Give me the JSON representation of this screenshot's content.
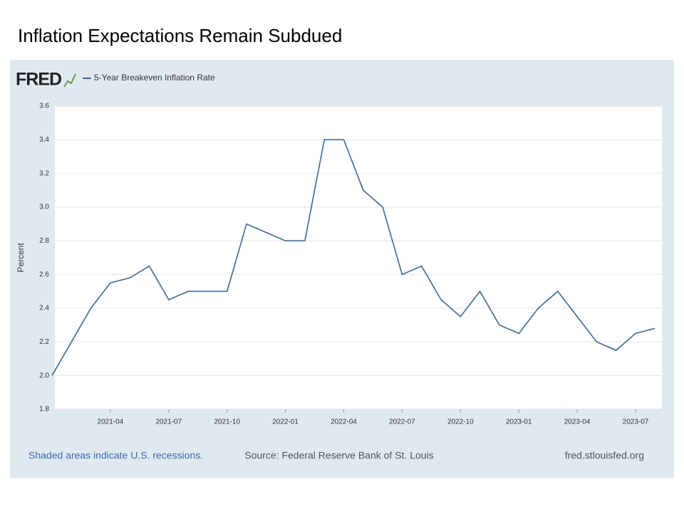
{
  "slide_title": "Inflation Expectations Remain Subdued",
  "chart_data": {
    "type": "line",
    "brand": "FRED",
    "y_label": "Percent",
    "x": [
      "2021-01",
      "2021-02",
      "2021-03",
      "2021-04",
      "2021-05",
      "2021-06",
      "2021-07",
      "2021-08",
      "2021-09",
      "2021-10",
      "2021-11",
      "2021-12",
      "2022-01",
      "2022-02",
      "2022-03",
      "2022-04",
      "2022-05",
      "2022-06",
      "2022-07",
      "2022-08",
      "2022-09",
      "2022-10",
      "2022-11",
      "2022-12",
      "2023-01",
      "2023-02",
      "2023-03",
      "2023-04",
      "2023-05",
      "2023-06",
      "2023-07",
      "2023-08"
    ],
    "series": [
      {
        "name": "5-Year Breakeven Inflation Rate",
        "color": "#3d6896",
        "values": [
          2.0,
          2.2,
          2.4,
          2.55,
          2.58,
          2.65,
          2.45,
          2.5,
          2.5,
          2.5,
          2.9,
          2.85,
          2.8,
          2.8,
          3.4,
          3.4,
          3.1,
          3.0,
          2.6,
          2.65,
          2.45,
          2.35,
          2.5,
          2.3,
          2.25,
          2.4,
          2.5,
          2.35,
          2.2,
          2.15,
          2.25,
          2.28
        ]
      }
    ],
    "xticks": [
      "2021-04",
      "2021-07",
      "2021-10",
      "2022-01",
      "2022-04",
      "2022-07",
      "2022-10",
      "2023-01",
      "2023-04",
      "2023-07"
    ],
    "ylim": [
      1.8,
      3.6
    ],
    "yticks": [
      1.8,
      {
        "value": 2.0,
        "label": "2.0"
      },
      2.2,
      2.4,
      2.6,
      2.8,
      {
        "value": 3.0,
        "label": "3.0"
      },
      3.2,
      3.4,
      3.6
    ],
    "grid": true,
    "footer_left": "Shaded areas indicate U.S. recessions.",
    "footer_center": "Source: Federal Reserve Bank of St. Louis",
    "footer_right": "fred.stlouisfed.org"
  }
}
